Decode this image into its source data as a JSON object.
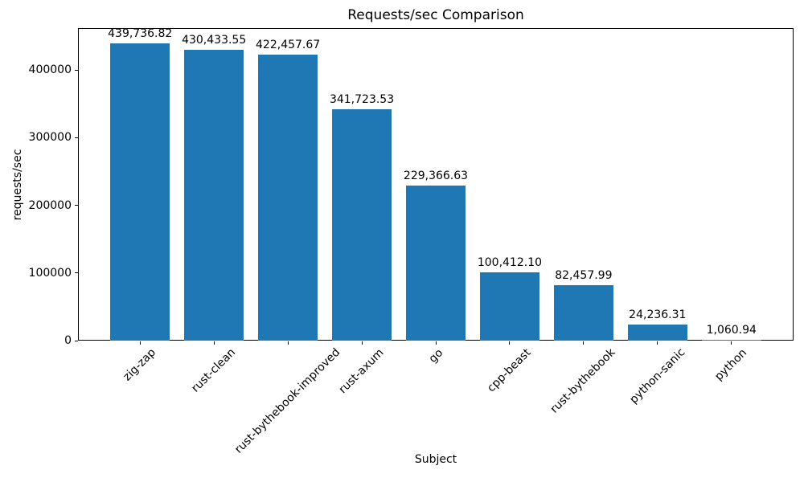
{
  "chart_data": {
    "type": "bar",
    "title": "Requests/sec Comparison",
    "xlabel": "Subject",
    "ylabel": "requests/sec",
    "categories": [
      "zig-zap",
      "rust-clean",
      "rust-bythebook-improved",
      "rust-axum",
      "go",
      "cpp-beast",
      "rust-bythebook",
      "python-sanic",
      "python"
    ],
    "values": [
      439736.82,
      430433.55,
      422457.67,
      341723.53,
      229366.63,
      100412.1,
      82457.99,
      24236.31,
      1060.94
    ],
    "value_labels": [
      "439,736.82",
      "430,433.55",
      "422,457.67",
      "341,723.53",
      "229,366.63",
      "100,412.10",
      "82,457.99",
      "24,236.31",
      "1,060.94"
    ],
    "y_ticks": [
      0,
      100000,
      200000,
      300000,
      400000
    ],
    "ylim": [
      0,
      462000
    ],
    "bar_color": "#1f77b4",
    "text_color": "#000000",
    "background_color": "#ffffff",
    "grid": false,
    "legend": "none",
    "x_tick_rotation": 45
  }
}
